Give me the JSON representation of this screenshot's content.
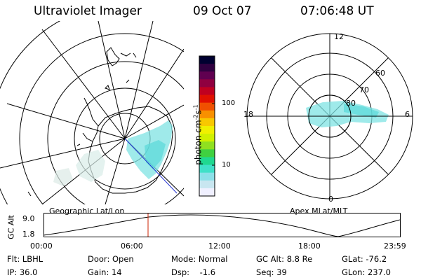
{
  "header": {
    "title": "Ultraviolet Imager",
    "date": "09 Oct 07",
    "time": "07:06:48 UT"
  },
  "left_map": {
    "caption": "Geographic Lat/Lon"
  },
  "right_map": {
    "caption": "Apex MLat/MLT",
    "mlt_labels": [
      "12",
      "18",
      "6",
      "0"
    ],
    "mlat_labels": [
      "60",
      "70",
      "80"
    ]
  },
  "colorbar": {
    "label": "photon cm",
    "label_sup1": "-2",
    "label_mid": "s",
    "label_sup2": "-1",
    "ticks": [
      "100",
      "10"
    ],
    "colors": [
      "#f0f0ff",
      "#c8e6f0",
      "#8ce0e8",
      "#40e0c8",
      "#20d890",
      "#40d040",
      "#90e020",
      "#d0f000",
      "#f0f000",
      "#f8c800",
      "#f89000",
      "#f05000",
      "#e01000",
      "#c00020",
      "#900040",
      "#600050",
      "#300040",
      "#000030"
    ]
  },
  "timeline": {
    "axis_label": "GC Alt",
    "y_ticks": [
      "9.0",
      "1.8"
    ],
    "x_ticks": [
      "00:00",
      "06:00",
      "12:00",
      "18:00",
      "23:59"
    ],
    "marker_time": "07:06:48"
  },
  "status": {
    "flt": "Flt: LBHL",
    "ip": "IP: 36.0",
    "door": "Door: Open",
    "gain": "Gain: 14",
    "mode": "Mode: Normal",
    "dsp": "Dsp:    -1.6",
    "gcalt": "GC Alt: 8.8 Re",
    "seq": "Seq: 39",
    "glat": "GLat: -76.2",
    "glon": "GLon: 237.0"
  },
  "colors": {
    "aurora": "#7fe3e3",
    "marker": "#cc2200",
    "map_line": "#000000"
  }
}
